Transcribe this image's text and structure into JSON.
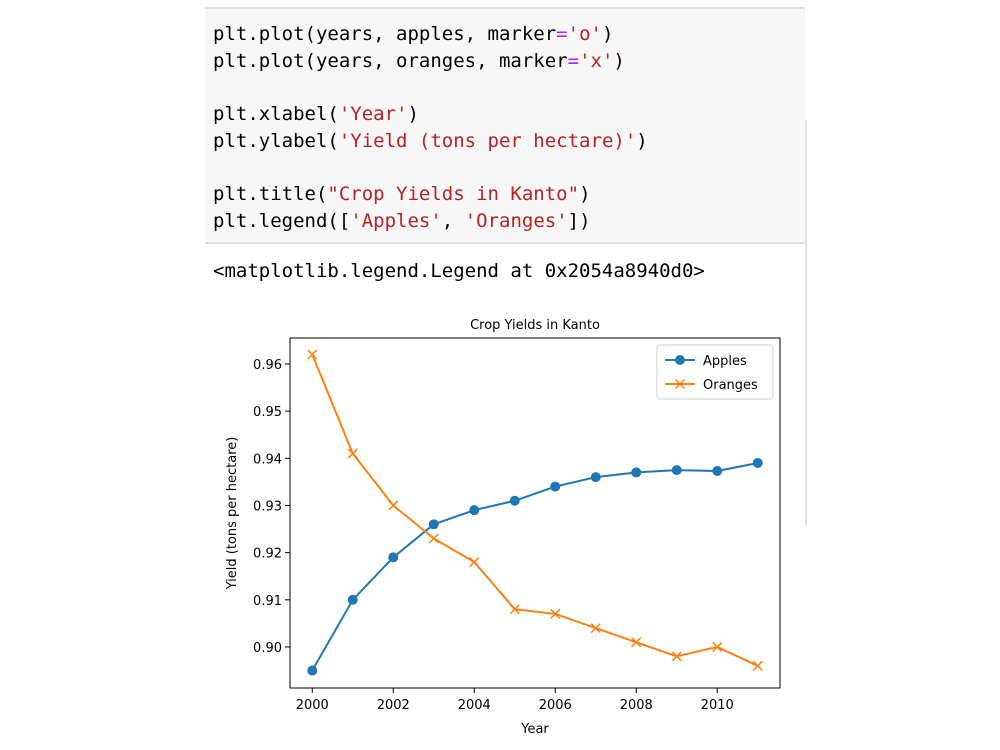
{
  "notebook": {
    "code_lines": [
      [
        "plt.plot(years, apples, marker",
        "=",
        "'o'",
        ")"
      ],
      [
        "plt.plot(years, oranges, marker",
        "=",
        "'x'",
        ")"
      ],
      [
        "plt.xlabel(",
        "'Year'",
        ")"
      ],
      [
        "plt.ylabel(",
        "'Yield (tons per hectare)'",
        ")"
      ],
      [
        "plt.title(",
        "\"Crop Yields in Kanto\"",
        ")"
      ],
      [
        "plt.legend([",
        "'Apples'",
        ", ",
        "'Oranges'",
        "])"
      ]
    ],
    "output": "<matplotlib.legend.Legend at 0x2054a8940d0>"
  },
  "chart_data": {
    "type": "line",
    "title": "Crop Yields in Kanto",
    "x_label": "Year",
    "y_label": "Yield (tons per hectare)",
    "x": [
      2000,
      2001,
      2002,
      2003,
      2004,
      2005,
      2006,
      2007,
      2008,
      2009,
      2010,
      2011
    ],
    "series": [
      {
        "name": "Apples",
        "color": "#1f77b4",
        "marker": "o",
        "values": [
          0.895,
          0.91,
          0.919,
          0.926,
          0.929,
          0.931,
          0.934,
          0.936,
          0.937,
          0.9375,
          0.9373,
          0.939
        ]
      },
      {
        "name": "Oranges",
        "color": "#ff7f0e",
        "marker": "x",
        "values": [
          0.962,
          0.941,
          0.93,
          0.923,
          0.918,
          0.908,
          0.907,
          0.904,
          0.901,
          0.898,
          0.9,
          0.896
        ]
      }
    ],
    "xlim": [
      1999.45,
      2011.55
    ],
    "ylim": [
      0.8913,
      0.9655
    ],
    "xticks": [
      2000,
      2002,
      2004,
      2006,
      2008,
      2010
    ],
    "yticks": [
      {
        "value": 0.9,
        "label": "0.90"
      },
      0.91,
      0.92,
      0.93,
      0.94,
      0.95,
      0.96
    ],
    "legend": "upper right",
    "grid": false
  }
}
